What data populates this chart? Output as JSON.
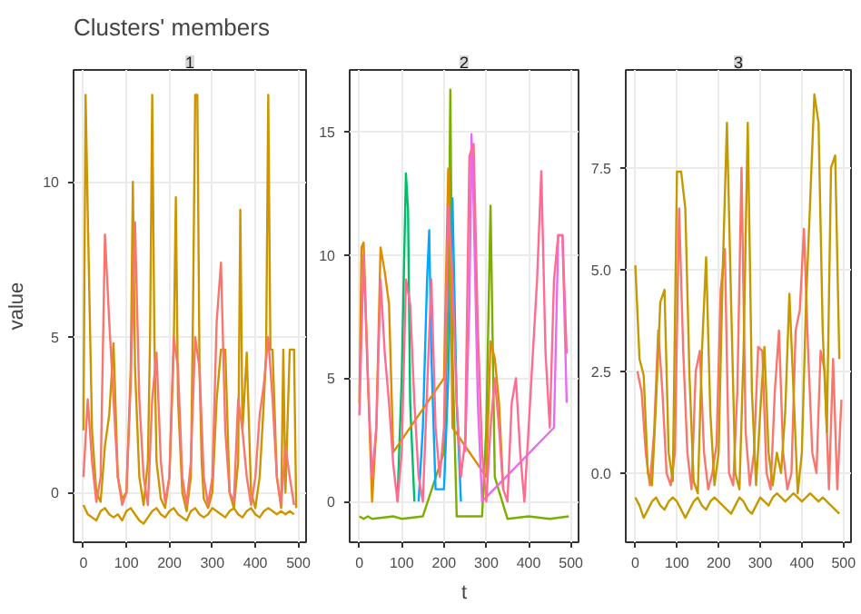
{
  "chart_data": [
    {
      "type": "line",
      "title": "Clusters' members",
      "subtitle": "1",
      "ylabel": "value",
      "xlim": [
        -23,
        518
      ],
      "ylim": [
        -1.6,
        13.6
      ],
      "xticks": [
        0,
        100,
        200,
        300,
        400,
        500
      ],
      "yticks": [
        0,
        5,
        10
      ],
      "grid": true,
      "series": [
        {
          "color": "#cd9600",
          "x": [
            0,
            5,
            10,
            20,
            30,
            40,
            50,
            60,
            70,
            80,
            90,
            100,
            110,
            115,
            120,
            130,
            140,
            150,
            155,
            160,
            165,
            170,
            180,
            190,
            200,
            210,
            215,
            220,
            230,
            240,
            250,
            255,
            260,
            265,
            270,
            275,
            280,
            290,
            300,
            310,
            320,
            330,
            340,
            350,
            360,
            365,
            370,
            380,
            390,
            400,
            410,
            420,
            425,
            430,
            435,
            440,
            450,
            460,
            465,
            470,
            480,
            485,
            490,
            495
          ],
          "values": [
            2.0,
            12.8,
            9.0,
            2.0,
            0.0,
            -0.3,
            1.5,
            2.5,
            4.8,
            0.5,
            -0.2,
            0.0,
            4.0,
            10.0,
            4.0,
            0.5,
            -0.4,
            1.0,
            5.0,
            12.8,
            5.0,
            1.0,
            -0.2,
            -0.5,
            0.5,
            4.6,
            9.5,
            3.0,
            0.0,
            -0.6,
            0.5,
            6.0,
            12.8,
            12.8,
            4.0,
            1.0,
            -0.2,
            -0.5,
            0.0,
            3.0,
            4.6,
            4.6,
            0.0,
            -0.5,
            1.0,
            9.1,
            2.0,
            4.5,
            0.0,
            -0.5,
            0.5,
            3.0,
            4.5,
            12.8,
            4.6,
            4.6,
            0.5,
            -0.5,
            4.6,
            0.0,
            4.6,
            4.6,
            4.6,
            -0.5
          ]
        },
        {
          "color": "#f8766d",
          "x": [
            0,
            10,
            20,
            30,
            40,
            50,
            60,
            70,
            80,
            90,
            100,
            110,
            120,
            130,
            140,
            150,
            160,
            170,
            180,
            190,
            200,
            210,
            220,
            230,
            240,
            250,
            260,
            270,
            280,
            290,
            300,
            310,
            320,
            330,
            340,
            350,
            360,
            370,
            380,
            390,
            400,
            410,
            420,
            430,
            440,
            450,
            460,
            470,
            480,
            490
          ],
          "values": [
            0.5,
            3.0,
            1.0,
            -0.3,
            0.5,
            8.3,
            5.5,
            3.0,
            0.5,
            -0.4,
            0.0,
            3.5,
            8.7,
            3.0,
            0.5,
            -0.4,
            3.0,
            4.5,
            1.0,
            -0.3,
            0.5,
            5.0,
            4.0,
            0.5,
            -0.4,
            1.0,
            5.0,
            4.0,
            0.5,
            -0.4,
            0.5,
            5.5,
            7.4,
            2.0,
            0.0,
            -0.3,
            3.0,
            2.0,
            0.5,
            -0.4,
            0.5,
            2.5,
            3.5,
            5.0,
            3.0,
            0.5,
            -0.4,
            1.5,
            0.5,
            -0.4
          ]
        },
        {
          "color": "#cd9600",
          "x": [
            0,
            10,
            20,
            30,
            40,
            50,
            60,
            70,
            80,
            90,
            100,
            110,
            120,
            130,
            140,
            150,
            160,
            170,
            180,
            190,
            200,
            210,
            220,
            230,
            240,
            250,
            260,
            270,
            280,
            290,
            300,
            310,
            320,
            330,
            340,
            350,
            360,
            370,
            380,
            390,
            400,
            410,
            420,
            430,
            440,
            450,
            460,
            470,
            480,
            490
          ],
          "values": [
            -0.4,
            -0.7,
            -0.8,
            -0.9,
            -0.6,
            -0.5,
            -0.7,
            -0.8,
            -0.7,
            -0.9,
            -0.6,
            -0.5,
            -0.7,
            -0.9,
            -1.0,
            -0.8,
            -0.6,
            -0.5,
            -0.7,
            -0.8,
            -0.6,
            -0.5,
            -0.7,
            -0.8,
            -0.9,
            -0.6,
            -0.5,
            -0.7,
            -0.8,
            -0.7,
            -0.5,
            -0.6,
            -0.7,
            -0.8,
            -0.6,
            -0.5,
            -0.7,
            -0.8,
            -0.6,
            -0.5,
            -0.7,
            -0.8,
            -0.6,
            -0.5,
            -0.6,
            -0.7,
            -0.6,
            -0.7,
            -0.6,
            -0.7
          ]
        }
      ]
    },
    {
      "type": "line",
      "subtitle": "2",
      "xlabel": "t",
      "xlim": [
        -23,
        518
      ],
      "ylim": [
        -1.65,
        17.5
      ],
      "xticks": [
        0,
        100,
        200,
        300,
        400,
        500
      ],
      "yticks": [
        0,
        5,
        10,
        15
      ],
      "grid": true,
      "series": [
        {
          "color": "#7cae00",
          "x": [
            0,
            10,
            20,
            30,
            80,
            100,
            150,
            200,
            210,
            215,
            220,
            230,
            290,
            300,
            310,
            320,
            350,
            400,
            450,
            495
          ],
          "values": [
            -0.6,
            -0.7,
            -0.6,
            -0.7,
            -0.6,
            -0.7,
            -0.6,
            2.0,
            8.0,
            16.7,
            6.0,
            -0.6,
            -0.6,
            3.0,
            12.0,
            1.0,
            -0.7,
            -0.6,
            -0.7,
            -0.6
          ]
        },
        {
          "color": "#00be67",
          "x": [
            90,
            100,
            110,
            115,
            120,
            130
          ],
          "values": [
            0.0,
            5.0,
            13.3,
            11.8,
            4.0,
            0.0
          ]
        },
        {
          "color": "#00a9ff",
          "x": [
            140,
            150,
            160,
            165,
            170,
            180,
            200,
            210,
            220,
            230,
            240
          ],
          "values": [
            0.0,
            3.0,
            9.0,
            11.0,
            6.0,
            0.5,
            0.5,
            5.0,
            12.3,
            4.0,
            0.0
          ]
        },
        {
          "color": "#de8c00",
          "x": [
            0,
            5,
            10,
            20,
            30,
            40,
            50,
            60,
            70,
            80,
            200,
            210,
            215,
            220,
            300,
            310,
            320,
            330,
            340
          ],
          "values": [
            4.0,
            10.3,
            10.5,
            5.0,
            0.0,
            3.0,
            10.3,
            9.3,
            8.0,
            2.0,
            5.0,
            13.5,
            10.0,
            3.0,
            1.0,
            6.5,
            5.8,
            4.0,
            0.5
          ]
        },
        {
          "color": "#e76bf3",
          "x": [
            250,
            260,
            265,
            270,
            280,
            290,
            460,
            470,
            480,
            490
          ],
          "values": [
            2.0,
            8.0,
            14.9,
            12.0,
            4.0,
            0.0,
            3.0,
            10.8,
            10.8,
            4.0
          ]
        },
        {
          "color": "#ff6c91",
          "x": [
            0,
            10,
            20,
            30,
            40,
            50,
            60,
            70,
            80,
            90,
            100,
            110,
            120,
            130,
            140,
            150,
            160,
            170,
            180,
            190,
            200,
            210,
            220,
            230,
            240,
            250,
            260,
            270,
            280,
            290,
            300,
            310,
            320,
            330,
            340,
            350,
            360,
            370,
            380,
            390,
            400,
            410,
            420,
            430,
            440,
            450,
            460,
            470,
            480,
            490
          ],
          "values": [
            3.5,
            10.0,
            5.0,
            1.0,
            3.0,
            9.0,
            6.0,
            4.0,
            1.5,
            0.0,
            2.0,
            9.0,
            8.0,
            4.0,
            1.0,
            0.0,
            4.5,
            9.0,
            3.0,
            1.0,
            3.0,
            12.0,
            9.0,
            4.0,
            1.0,
            2.5,
            14.0,
            14.5,
            7.0,
            2.0,
            0.0,
            3.0,
            5.0,
            3.0,
            0.5,
            0.0,
            4.0,
            5.0,
            2.0,
            0.0,
            3.0,
            6.0,
            9.0,
            13.4,
            6.0,
            3.0,
            9.0,
            10.8,
            10.8,
            6.0
          ]
        }
      ]
    },
    {
      "type": "line",
      "subtitle": "3",
      "xlim": [
        -23,
        518
      ],
      "ylim": [
        -1.7,
        9.9
      ],
      "xticks": [
        0,
        100,
        200,
        300,
        400,
        500
      ],
      "yticks": [
        {
          "value": 0,
          "label": "0.0"
        },
        {
          "value": 2.5,
          "label": "2.5"
        },
        {
          "value": 5,
          "label": "5.0"
        },
        {
          "value": 7.5,
          "label": "7.5"
        }
      ],
      "grid": true,
      "series": [
        {
          "color": "#f8766d",
          "x": [
            5,
            15,
            25,
            35,
            45,
            55,
            65,
            75,
            85,
            95,
            105,
            115,
            125,
            135,
            145,
            155,
            165,
            175,
            185,
            195,
            205,
            215,
            225,
            235,
            245,
            255,
            265,
            275,
            285,
            295,
            305,
            315,
            325,
            335,
            345,
            355,
            365,
            375,
            385,
            395,
            405,
            415,
            425,
            435,
            445,
            455,
            465,
            475,
            485,
            495
          ],
          "values": [
            2.5,
            2.0,
            0.5,
            -0.3,
            1.0,
            3.5,
            2.0,
            0.0,
            -0.3,
            0.5,
            6.5,
            3.0,
            0.5,
            -0.4,
            2.5,
            3.0,
            0.5,
            -0.4,
            0.0,
            0.7,
            4.5,
            5.5,
            0.0,
            -0.3,
            2.0,
            7.5,
            1.0,
            -0.3,
            0.5,
            3.1,
            3.0,
            0.0,
            -0.4,
            2.0,
            3.5,
            0.5,
            -0.4,
            0.0,
            3.5,
            4.0,
            6.0,
            3.0,
            0.5,
            0.0,
            3.0,
            2.5,
            -0.4,
            2.8,
            -0.4,
            1.8
          ]
        },
        {
          "color": "#c49a00",
          "x": [
            0,
            10,
            20,
            30,
            40,
            50,
            60,
            70,
            80,
            90,
            100,
            110,
            120,
            130,
            140,
            150,
            160,
            170,
            180,
            190,
            200,
            210,
            220,
            230,
            240,
            250,
            260,
            270,
            280,
            290,
            300,
            310,
            320,
            330,
            340,
            350,
            360,
            370,
            380,
            390,
            400,
            410,
            420,
            430,
            440,
            450,
            460,
            470,
            480,
            490
          ],
          "values": [
            5.1,
            2.8,
            2.4,
            0.0,
            -0.3,
            1.8,
            4.2,
            4.5,
            0.5,
            -0.2,
            7.4,
            7.4,
            6.5,
            2.4,
            -0.2,
            -0.5,
            3.0,
            5.3,
            1.5,
            -0.3,
            0.5,
            5.0,
            8.6,
            4.2,
            0.0,
            -0.4,
            3.0,
            8.6,
            2.0,
            -0.3,
            1.5,
            3.1,
            0.5,
            -0.3,
            0.5,
            0.0,
            1.5,
            4.4,
            2.0,
            -0.5,
            0.5,
            4.2,
            6.7,
            9.3,
            8.6,
            3.5,
            1.0,
            7.5,
            7.8,
            2.8
          ]
        },
        {
          "color": "#c49a00",
          "x": [
            0,
            10,
            20,
            30,
            40,
            50,
            60,
            70,
            80,
            90,
            100,
            110,
            120,
            130,
            140,
            150,
            160,
            170,
            180,
            190,
            200,
            210,
            220,
            230,
            240,
            250,
            260,
            270,
            280,
            290,
            300,
            310,
            320,
            330,
            340,
            350,
            360,
            370,
            380,
            390,
            400,
            410,
            420,
            430,
            440,
            450,
            460,
            470,
            480,
            490
          ],
          "values": [
            -0.6,
            -0.8,
            -1.1,
            -0.9,
            -0.7,
            -0.6,
            -0.8,
            -0.9,
            -0.7,
            -0.6,
            -0.7,
            -0.9,
            -1.1,
            -0.9,
            -0.7,
            -0.6,
            -0.8,
            -0.9,
            -0.7,
            -0.6,
            -0.7,
            -0.8,
            -0.9,
            -1.0,
            -0.8,
            -0.6,
            -0.7,
            -0.9,
            -1.0,
            -0.8,
            -0.6,
            -0.7,
            -0.8,
            -0.6,
            -0.5,
            -0.6,
            -0.7,
            -0.6,
            -0.5,
            -0.6,
            -0.7,
            -0.6,
            -0.5,
            -0.6,
            -0.7,
            -0.6,
            -0.7,
            -0.8,
            -0.9,
            -1.0
          ]
        }
      ]
    }
  ]
}
